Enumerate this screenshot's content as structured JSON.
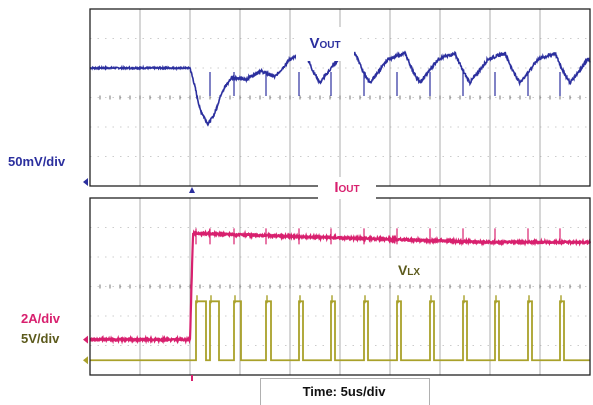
{
  "chart_data": {
    "type": "line",
    "title": "",
    "x_scale_text": "Time: 5us/div",
    "x_unit": "us",
    "x_per_div": 5,
    "x_divisions": 10,
    "x_range_us": [
      0,
      50
    ],
    "grid": true,
    "panels": [
      {
        "name": "top",
        "y_divisions": 6,
        "series": [
          {
            "name_main": "V",
            "name_sub": "OUT",
            "scale_text": "50mV/div",
            "color": "#2b2f9e",
            "ref_marker": "1",
            "baseline_div_from_top": 2.0,
            "x_us": [
              0.0,
              10.0,
              10.4,
              11.0,
              11.8,
              12.4,
              13.2,
              14.2,
              15.5,
              17.0,
              18.5,
              20.0,
              21.5,
              22.3,
              23.0,
              24.8,
              26.5,
              27.3,
              28.0,
              29.8,
              31.5,
              32.3,
              33.0,
              34.8,
              36.5,
              37.3,
              38.0,
              39.8,
              41.5,
              42.3,
              43.0,
              44.8,
              46.5,
              47.3,
              48.0,
              49.8,
              50.0
            ],
            "y_mV": [
              0,
              0,
              -25,
              -70,
              -95,
              -80,
              -40,
              -15,
              -20,
              -5,
              -15,
              15,
              25,
              -5,
              -25,
              15,
              25,
              -5,
              -25,
              15,
              25,
              -5,
              -25,
              15,
              25,
              -5,
              -25,
              15,
              25,
              -5,
              -25,
              15,
              25,
              -5,
              -25,
              15,
              10
            ]
          }
        ]
      },
      {
        "name": "bottom",
        "y_divisions": 6,
        "series": [
          {
            "name_main": "I",
            "name_sub": "OUT",
            "scale_text": "2A/div",
            "color": "#d8206e",
            "ref_marker": "2",
            "baseline_div_from_top": 4.8,
            "x_us": [
              0.0,
              10.0,
              10.3,
              10.8,
              20.0,
              30.0,
              40.0,
              50.0
            ],
            "y_A": [
              0.0,
              0.0,
              7.2,
              7.2,
              7.0,
              6.8,
              6.6,
              6.6
            ]
          },
          {
            "name_main": "V",
            "name_sub": "LX",
            "scale_text": "5V/div",
            "color": "#a9a12a",
            "ref_marker": "3",
            "baseline_div_from_top": 5.5,
            "pulse_us": [
              [
                10.6,
                11.6
              ],
              [
                12.0,
                12.9
              ],
              [
                14.4,
                15.1
              ],
              [
                17.6,
                18.1
              ],
              [
                20.9,
                21.3
              ],
              [
                24.1,
                24.5
              ],
              [
                27.4,
                27.8
              ],
              [
                30.7,
                31.1
              ],
              [
                34.0,
                34.4
              ],
              [
                37.3,
                37.7
              ],
              [
                40.5,
                40.9
              ],
              [
                43.8,
                44.2
              ],
              [
                47.0,
                47.4
              ]
            ],
            "pulse_high_V": 10
          }
        ]
      }
    ],
    "trigger_time_us": 10.2
  }
}
